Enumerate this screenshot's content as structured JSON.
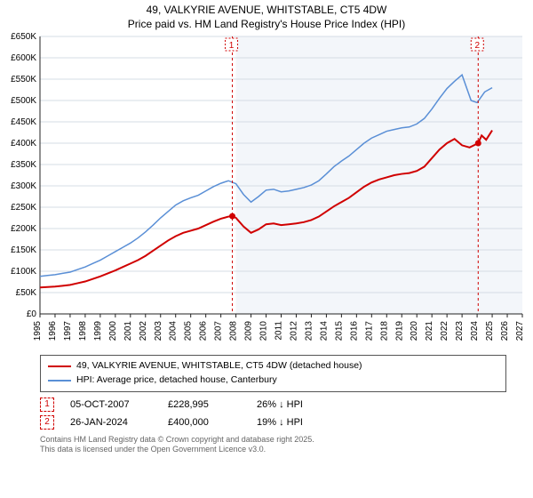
{
  "title_line1": "49, VALKYRIE AVENUE, WHITSTABLE, CT5 4DW",
  "title_line2": "Price paid vs. HM Land Registry's House Price Index (HPI)",
  "chart": {
    "type": "line",
    "background_color": "#ffffff",
    "plot_bg_color": "#f3f6fa",
    "plot_bg_start_year": 2008,
    "grid_color": "#d6dce4",
    "axis_color": "#222222",
    "x_years": [
      1995,
      1996,
      1997,
      1998,
      1999,
      2000,
      2001,
      2002,
      2003,
      2004,
      2005,
      2006,
      2007,
      2008,
      2009,
      2010,
      2011,
      2012,
      2013,
      2014,
      2015,
      2016,
      2017,
      2018,
      2019,
      2020,
      2021,
      2022,
      2023,
      2024,
      2025,
      2026,
      2027
    ],
    "y_min": 0,
    "y_max": 650,
    "y_step": 50,
    "y_prefix": "£",
    "y_suffix": "K",
    "tick_fontsize": 10,
    "series": [
      {
        "name": "property",
        "label": "49, VALKYRIE AVENUE, WHITSTABLE, CT5 4DW (detached house)",
        "color": "#d00000",
        "width": 2,
        "data": [
          [
            1995.0,
            62
          ],
          [
            1995.5,
            63
          ],
          [
            1996.0,
            64
          ],
          [
            1996.5,
            66
          ],
          [
            1997.0,
            68
          ],
          [
            1997.5,
            72
          ],
          [
            1998.0,
            76
          ],
          [
            1998.5,
            82
          ],
          [
            1999.0,
            88
          ],
          [
            1999.5,
            95
          ],
          [
            2000.0,
            102
          ],
          [
            2000.5,
            110
          ],
          [
            2001.0,
            118
          ],
          [
            2001.5,
            126
          ],
          [
            2002.0,
            136
          ],
          [
            2002.5,
            148
          ],
          [
            2003.0,
            160
          ],
          [
            2003.5,
            172
          ],
          [
            2004.0,
            182
          ],
          [
            2004.5,
            190
          ],
          [
            2005.0,
            195
          ],
          [
            2005.5,
            200
          ],
          [
            2006.0,
            208
          ],
          [
            2006.5,
            216
          ],
          [
            2007.0,
            223
          ],
          [
            2007.5,
            228
          ],
          [
            2007.76,
            229
          ],
          [
            2008.0,
            225
          ],
          [
            2008.5,
            205
          ],
          [
            2009.0,
            190
          ],
          [
            2009.5,
            198
          ],
          [
            2010.0,
            210
          ],
          [
            2010.5,
            212
          ],
          [
            2011.0,
            208
          ],
          [
            2011.5,
            210
          ],
          [
            2012.0,
            212
          ],
          [
            2012.5,
            215
          ],
          [
            2013.0,
            220
          ],
          [
            2013.5,
            228
          ],
          [
            2014.0,
            240
          ],
          [
            2014.5,
            252
          ],
          [
            2015.0,
            262
          ],
          [
            2015.5,
            272
          ],
          [
            2016.0,
            285
          ],
          [
            2016.5,
            298
          ],
          [
            2017.0,
            308
          ],
          [
            2017.5,
            315
          ],
          [
            2018.0,
            320
          ],
          [
            2018.5,
            325
          ],
          [
            2019.0,
            328
          ],
          [
            2019.5,
            330
          ],
          [
            2020.0,
            335
          ],
          [
            2020.5,
            345
          ],
          [
            2021.0,
            365
          ],
          [
            2021.5,
            385
          ],
          [
            2022.0,
            400
          ],
          [
            2022.5,
            410
          ],
          [
            2023.0,
            395
          ],
          [
            2023.5,
            390
          ],
          [
            2024.07,
            400
          ],
          [
            2024.3,
            418
          ],
          [
            2024.6,
            408
          ],
          [
            2025.0,
            430
          ]
        ],
        "markers": [
          {
            "n": "1",
            "x": 2007.76,
            "y": 229,
            "date": "05-OCT-2007",
            "price": "£228,995",
            "diff": "26% ↓ HPI"
          },
          {
            "n": "2",
            "x": 2024.07,
            "y": 400,
            "date": "26-JAN-2024",
            "price": "£400,000",
            "diff": "19% ↓ HPI"
          }
        ]
      },
      {
        "name": "hpi",
        "label": "HPI: Average price, detached house, Canterbury",
        "color": "#5a8fd6",
        "width": 1.5,
        "data": [
          [
            1995.0,
            88
          ],
          [
            1995.5,
            90
          ],
          [
            1996.0,
            92
          ],
          [
            1996.5,
            95
          ],
          [
            1997.0,
            98
          ],
          [
            1997.5,
            104
          ],
          [
            1998.0,
            110
          ],
          [
            1998.5,
            118
          ],
          [
            1999.0,
            126
          ],
          [
            1999.5,
            136
          ],
          [
            2000.0,
            146
          ],
          [
            2000.5,
            156
          ],
          [
            2001.0,
            166
          ],
          [
            2001.5,
            178
          ],
          [
            2002.0,
            192
          ],
          [
            2002.5,
            208
          ],
          [
            2003.0,
            225
          ],
          [
            2003.5,
            240
          ],
          [
            2004.0,
            255
          ],
          [
            2004.5,
            265
          ],
          [
            2005.0,
            272
          ],
          [
            2005.5,
            278
          ],
          [
            2006.0,
            288
          ],
          [
            2006.5,
            298
          ],
          [
            2007.0,
            306
          ],
          [
            2007.5,
            312
          ],
          [
            2008.0,
            305
          ],
          [
            2008.5,
            280
          ],
          [
            2009.0,
            262
          ],
          [
            2009.5,
            275
          ],
          [
            2010.0,
            290
          ],
          [
            2010.5,
            292
          ],
          [
            2011.0,
            286
          ],
          [
            2011.5,
            288
          ],
          [
            2012.0,
            292
          ],
          [
            2012.5,
            296
          ],
          [
            2013.0,
            302
          ],
          [
            2013.5,
            312
          ],
          [
            2014.0,
            328
          ],
          [
            2014.5,
            345
          ],
          [
            2015.0,
            358
          ],
          [
            2015.5,
            370
          ],
          [
            2016.0,
            385
          ],
          [
            2016.5,
            400
          ],
          [
            2017.0,
            412
          ],
          [
            2017.5,
            420
          ],
          [
            2018.0,
            428
          ],
          [
            2018.5,
            432
          ],
          [
            2019.0,
            436
          ],
          [
            2019.5,
            438
          ],
          [
            2020.0,
            445
          ],
          [
            2020.5,
            458
          ],
          [
            2021.0,
            480
          ],
          [
            2021.5,
            505
          ],
          [
            2022.0,
            528
          ],
          [
            2022.5,
            545
          ],
          [
            2023.0,
            560
          ],
          [
            2023.3,
            530
          ],
          [
            2023.6,
            500
          ],
          [
            2024.0,
            495
          ],
          [
            2024.5,
            520
          ],
          [
            2025.0,
            530
          ]
        ]
      }
    ],
    "annotation_line_color": "#d00000"
  },
  "footer": {
    "line1": "Contains HM Land Registry data © Crown copyright and database right 2025.",
    "line2": "This data is licensed under the Open Government Licence v3.0."
  },
  "legend": {
    "rows": [
      {
        "color": "#d00000",
        "label": "49, VALKYRIE AVENUE, WHITSTABLE, CT5 4DW (detached house)"
      },
      {
        "color": "#5a8fd6",
        "label": "HPI: Average price, detached house, Canterbury"
      }
    ]
  }
}
